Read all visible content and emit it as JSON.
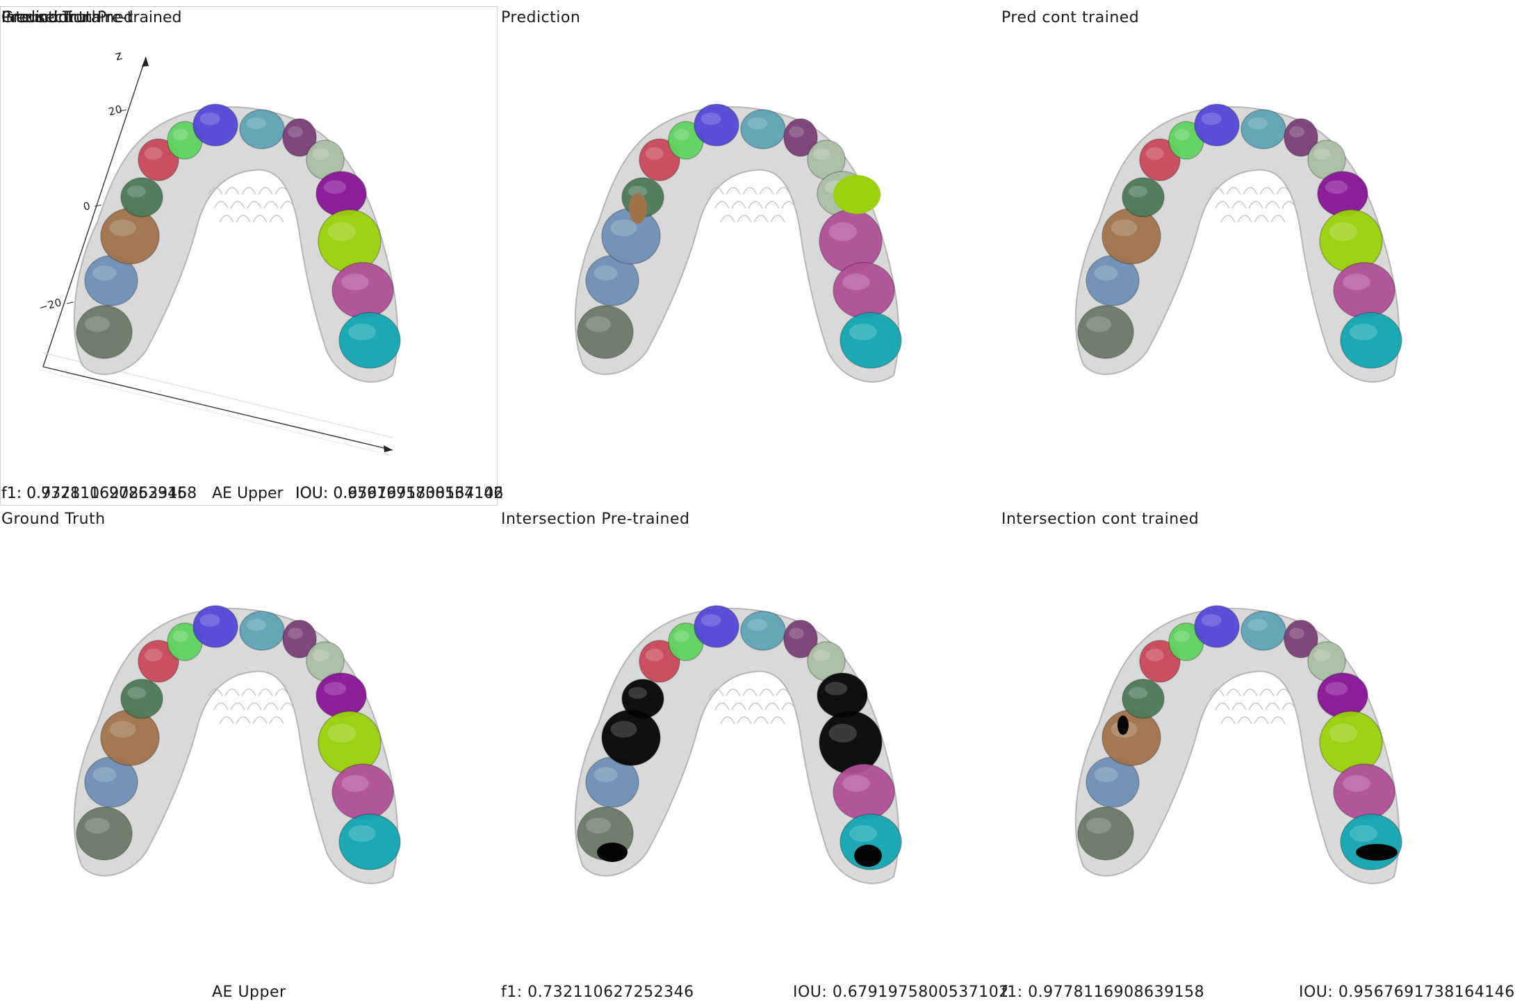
{
  "titles": {
    "top_left_overlap_1": "Prediction",
    "top_left_overlap_2": "Ground Truth",
    "top_left_overlap_3": "Intersection Pre-trained",
    "top_left_overlap_4": "Pred cont trained",
    "prediction": "Prediction",
    "pred_cont_trained": "Pred cont trained",
    "ground_truth": "Ground Truth",
    "intersection_pre": "Intersection Pre-trained",
    "intersection_cont": "Intersection cont trained"
  },
  "metrics": {
    "top_f1_a": "f1: 0.732110627252346",
    "top_f1_b": "f1: 0.9778116908639158",
    "top_ae": "AE Upper",
    "top_iou_a": "IOU: 0.6791975800537102",
    "top_iou_b": "IOU: 0.9567691738164146",
    "bottom_ae": "AE Upper",
    "bottom_f1_pre": "f1: 0.732110627252346",
    "bottom_iou_pre": "IOU: 0.6791975800537102",
    "bottom_f1_cont": "f1: 0.9778116908639158",
    "bottom_iou_cont": "IOU: 0.9567691738164146"
  },
  "axes": {
    "z_label": "z",
    "ticks": [
      "20",
      "0",
      "−20"
    ]
  },
  "colors": {
    "gum": "#d9d9d9",
    "gum_shadow": "#b5b5b5",
    "black_region": "#050505",
    "teeth": {
      "t1": "#6a7a66",
      "t2": "#6f8fb6",
      "t3": "#a0734c",
      "t4": "#4d7a58",
      "t5": "#c9485a",
      "t6": "#5fd35f",
      "t7": "#5248d9",
      "t8": "#5fa3b6",
      "t9": "#7a3f76",
      "t10": "#a9bfa3",
      "t11": "#8a1598",
      "t12": "#9ad10a",
      "t13": "#b14f99",
      "t14": "#12a7b1"
    }
  }
}
